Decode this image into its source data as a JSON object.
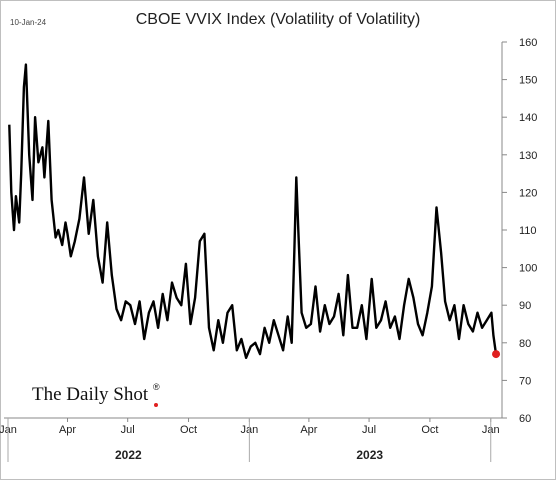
{
  "header": {
    "title": "CBOE VVIX Index (Volatility of Volatility)",
    "date_stamp": "10-Jan-24"
  },
  "brand": {
    "text": "The Daily Shot",
    "mark": "®"
  },
  "chart_data": {
    "type": "line",
    "title": "CBOE VVIX Index (Volatility of Volatility)",
    "xlabel": "",
    "ylabel": "",
    "ylim": [
      60,
      160
    ],
    "xlim": [
      "2022-01-01",
      "2024-01-15"
    ],
    "y_ticks": [
      60,
      70,
      80,
      90,
      100,
      110,
      120,
      130,
      140,
      150,
      160
    ],
    "x_ticks": [
      {
        "date": "2022-01-01",
        "label": "Jan"
      },
      {
        "date": "2022-04-01",
        "label": "Apr"
      },
      {
        "date": "2022-07-01",
        "label": "Jul"
      },
      {
        "date": "2022-10-01",
        "label": "Oct"
      },
      {
        "date": "2023-01-01",
        "label": "Jan"
      },
      {
        "date": "2023-04-01",
        "label": "Apr"
      },
      {
        "date": "2023-07-01",
        "label": "Jul"
      },
      {
        "date": "2023-10-01",
        "label": "Oct"
      },
      {
        "date": "2024-01-01",
        "label": "Jan"
      }
    ],
    "year_labels": [
      {
        "label": "2022",
        "center": "2022-07-02"
      },
      {
        "label": "2023",
        "center": "2023-07-02"
      }
    ],
    "y_axis_position": "right",
    "grid": false,
    "line_color": "#000000",
    "last_point_color": "#e02020",
    "series": [
      {
        "x": [
          "2022-01-03",
          "2022-01-06",
          "2022-01-10",
          "2022-01-13",
          "2022-01-18",
          "2022-01-21",
          "2022-01-25",
          "2022-01-28",
          "2022-02-02",
          "2022-02-07",
          "2022-02-11",
          "2022-02-16",
          "2022-02-22",
          "2022-02-25",
          "2022-03-03",
          "2022-03-08",
          "2022-03-14",
          "2022-03-18",
          "2022-03-24",
          "2022-03-29",
          "2022-04-01",
          "2022-04-06",
          "2022-04-12",
          "2022-04-19",
          "2022-04-26",
          "2022-05-03",
          "2022-05-10",
          "2022-05-17",
          "2022-05-24",
          "2022-05-31",
          "2022-06-07",
          "2022-06-14",
          "2022-06-21",
          "2022-06-28",
          "2022-07-05",
          "2022-07-12",
          "2022-07-19",
          "2022-07-26",
          "2022-08-02",
          "2022-08-09",
          "2022-08-16",
          "2022-08-23",
          "2022-08-30",
          "2022-09-06",
          "2022-09-13",
          "2022-09-20",
          "2022-09-27",
          "2022-10-04",
          "2022-10-11",
          "2022-10-18",
          "2022-10-25",
          "2022-11-01",
          "2022-11-08",
          "2022-11-15",
          "2022-11-22",
          "2022-11-29",
          "2022-12-06",
          "2022-12-13",
          "2022-12-20",
          "2022-12-27",
          "2023-01-03",
          "2023-01-10",
          "2023-01-17",
          "2023-01-24",
          "2023-01-31",
          "2023-02-07",
          "2023-02-14",
          "2023-02-21",
          "2023-02-28",
          "2023-03-06",
          "2023-03-10",
          "2023-03-13",
          "2023-03-16",
          "2023-03-21",
          "2023-03-28",
          "2023-04-04",
          "2023-04-11",
          "2023-04-18",
          "2023-04-25",
          "2023-05-02",
          "2023-05-09",
          "2023-05-16",
          "2023-05-23",
          "2023-05-30",
          "2023-06-06",
          "2023-06-13",
          "2023-06-20",
          "2023-06-27",
          "2023-07-05",
          "2023-07-12",
          "2023-07-19",
          "2023-07-26",
          "2023-08-02",
          "2023-08-09",
          "2023-08-16",
          "2023-08-23",
          "2023-08-30",
          "2023-09-06",
          "2023-09-13",
          "2023-09-20",
          "2023-09-27",
          "2023-10-04",
          "2023-10-11",
          "2023-10-18",
          "2023-10-24",
          "2023-10-31",
          "2023-11-07",
          "2023-11-14",
          "2023-11-21",
          "2023-11-28",
          "2023-12-05",
          "2023-12-12",
          "2023-12-19",
          "2023-12-26",
          "2024-01-02",
          "2024-01-05",
          "2024-01-09"
        ],
        "values": [
          138,
          120,
          110,
          119,
          112,
          125,
          148,
          154,
          130,
          118,
          140,
          128,
          132,
          124,
          139,
          118,
          108,
          110,
          106,
          112,
          109,
          103,
          107,
          113,
          124,
          109,
          118,
          103,
          96,
          112,
          98,
          89,
          86,
          91,
          90,
          85,
          91,
          81,
          88,
          91,
          84,
          93,
          86,
          96,
          92,
          90,
          101,
          85,
          92,
          107,
          109,
          84,
          78,
          86,
          80,
          88,
          90,
          78,
          81,
          76,
          79,
          80,
          77,
          84,
          80,
          86,
          82,
          78,
          87,
          80,
          104,
          124,
          110,
          88,
          84,
          85,
          95,
          83,
          90,
          85,
          87,
          93,
          82,
          98,
          84,
          84,
          90,
          81,
          97,
          84,
          86,
          91,
          84,
          87,
          81,
          90,
          97,
          92,
          85,
          82,
          88,
          95,
          116,
          104,
          91,
          86,
          90,
          81,
          90,
          85,
          83,
          88,
          84,
          86,
          88,
          82,
          77
        ]
      }
    ]
  }
}
